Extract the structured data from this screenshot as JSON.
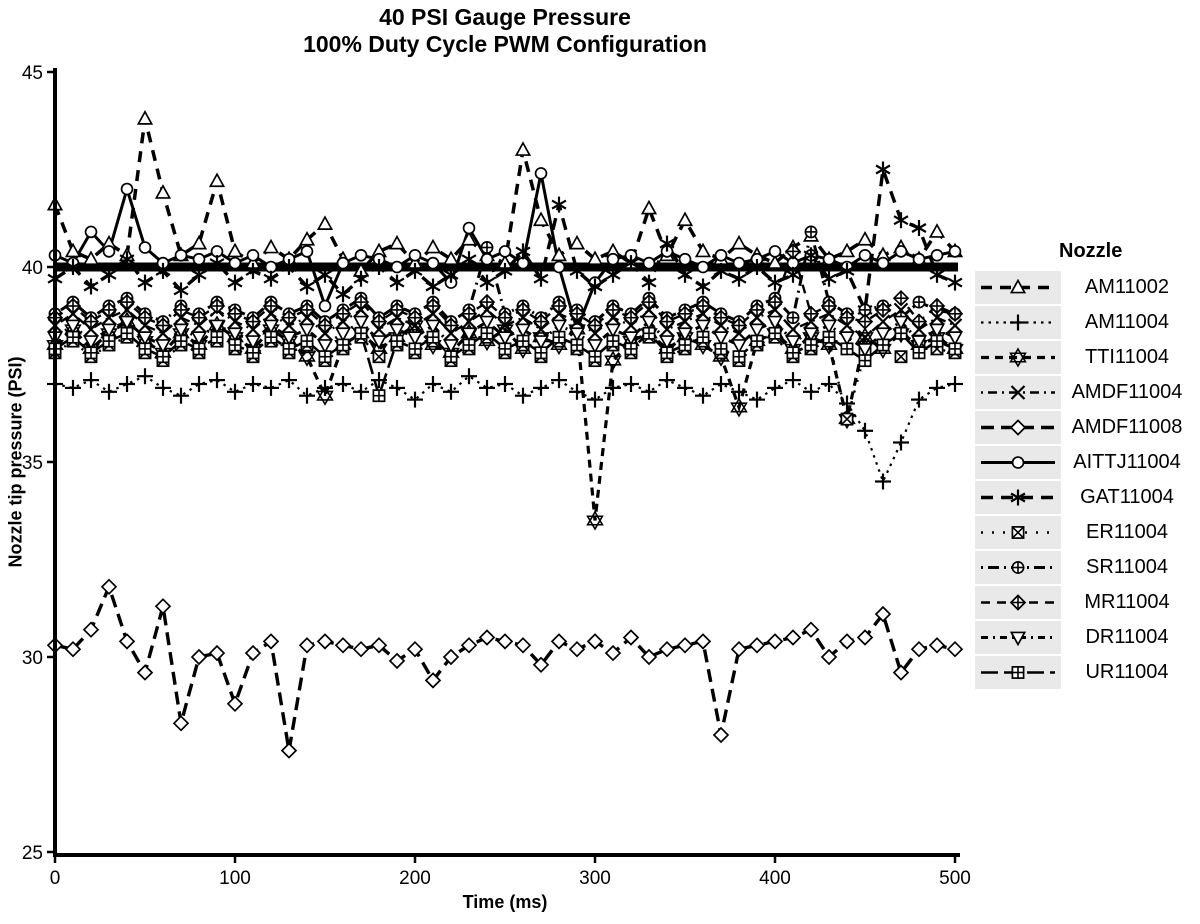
{
  "chart_data": {
    "type": "line",
    "title_line1": "40 PSI Gauge Pressure",
    "title_line2": "100% Duty Cycle PWM Configuration",
    "xlabel": "Time (ms)",
    "ylabel": "Nozzle tip pressure (PSI)",
    "legend_title": "Nozzle",
    "xlim": [
      0,
      500
    ],
    "ylim": [
      25,
      45
    ],
    "xticks": [
      0,
      100,
      200,
      300,
      400,
      500
    ],
    "yticks": [
      25,
      30,
      35,
      40,
      45
    ],
    "grid": "off",
    "legend_position": "right",
    "reference_line": {
      "y": 40,
      "stroke_width": 9,
      "color": "#000000"
    },
    "colors": {
      "foreground": "#000000",
      "background": "#ffffff",
      "legend_key_bg": "#e9e9e9"
    },
    "x": [
      0,
      10,
      20,
      30,
      40,
      50,
      60,
      70,
      80,
      90,
      100,
      110,
      120,
      130,
      140,
      150,
      160,
      170,
      180,
      190,
      200,
      210,
      220,
      230,
      240,
      250,
      260,
      270,
      280,
      290,
      300,
      310,
      320,
      330,
      340,
      350,
      360,
      370,
      380,
      390,
      400,
      410,
      420,
      430,
      440,
      450,
      460,
      470,
      480,
      490,
      500
    ],
    "series": [
      {
        "name": "AM11002",
        "marker": "triangle-up",
        "dash": "11,8",
        "width": 3.5,
        "values": [
          41.6,
          40.4,
          40.2,
          40.6,
          40.3,
          43.8,
          41.9,
          40.3,
          40.6,
          42.2,
          40.4,
          40.1,
          40.5,
          40.2,
          40.7,
          41.1,
          40.2,
          39.9,
          40.4,
          40.6,
          40.1,
          40.5,
          40.2,
          40.7,
          40.3,
          40.1,
          43.0,
          41.2,
          40.3,
          40.6,
          40.2,
          40.4,
          40.1,
          41.5,
          40.3,
          41.2,
          40.4,
          40.2,
          40.6,
          40.3,
          40.1,
          40.5,
          40.8,
          40.2,
          40.4,
          40.7,
          40.3,
          40.5,
          40.2,
          40.9,
          40.4
        ]
      },
      {
        "name": "AM11004",
        "marker": "plus",
        "dash": "2.5,5",
        "width": 2.2,
        "values": [
          37.0,
          36.9,
          37.1,
          36.8,
          37.0,
          37.2,
          36.9,
          36.7,
          37.0,
          37.1,
          36.8,
          37.0,
          36.9,
          37.1,
          36.7,
          36.9,
          37.0,
          36.8,
          37.1,
          36.9,
          36.6,
          37.0,
          36.8,
          37.2,
          36.9,
          37.0,
          36.7,
          36.9,
          37.1,
          36.8,
          36.6,
          36.9,
          37.0,
          36.8,
          37.1,
          36.9,
          36.7,
          37.0,
          36.8,
          36.6,
          36.9,
          37.1,
          36.8,
          37.0,
          36.5,
          35.8,
          34.5,
          35.5,
          36.6,
          36.9,
          37.0
        ]
      },
      {
        "name": "TTI11004",
        "marker": "star6",
        "dash": "8,6",
        "width": 3.2,
        "values": [
          38.0,
          38.4,
          37.9,
          38.3,
          38.6,
          38.1,
          37.8,
          38.3,
          38.0,
          38.5,
          38.2,
          37.9,
          38.4,
          38.1,
          37.7,
          36.7,
          38.0,
          38.3,
          37.9,
          38.2,
          38.5,
          38.0,
          37.8,
          38.3,
          38.1,
          38.4,
          37.9,
          38.2,
          38.0,
          38.4,
          33.5,
          37.6,
          38.1,
          38.3,
          37.9,
          38.2,
          38.0,
          37.7,
          36.4,
          38.1,
          38.3,
          37.9,
          38.2,
          38.0,
          36.1,
          38.2,
          37.9,
          38.3,
          38.0,
          38.2,
          37.9
        ]
      },
      {
        "name": "AMDF11004",
        "marker": "x",
        "dash": "2,5,9,5",
        "width": 2.4,
        "values": [
          38.5,
          38.8,
          38.4,
          38.7,
          38.9,
          38.5,
          38.3,
          38.7,
          38.5,
          38.9,
          38.6,
          38.4,
          38.8,
          38.5,
          38.7,
          38.3,
          38.6,
          38.9,
          38.4,
          38.7,
          38.5,
          38.8,
          38.3,
          38.6,
          38.9,
          38.5,
          38.7,
          38.4,
          38.8,
          38.6,
          38.3,
          38.7,
          38.5,
          38.9,
          38.4,
          38.6,
          38.8,
          38.5,
          38.3,
          38.7,
          38.9,
          38.4,
          38.6,
          38.8,
          38.5,
          38.2,
          38.6,
          38.9,
          38.4,
          38.7,
          38.5
        ]
      },
      {
        "name": "AMDF11008",
        "marker": "diamond",
        "dash": "13,7",
        "width": 3.4,
        "values": [
          30.3,
          30.2,
          30.7,
          31.8,
          30.4,
          29.6,
          31.3,
          28.3,
          30.0,
          30.1,
          28.8,
          30.1,
          30.4,
          27.6,
          30.3,
          30.4,
          30.3,
          30.2,
          30.3,
          29.9,
          30.2,
          29.4,
          30.0,
          30.3,
          30.5,
          30.4,
          30.3,
          29.8,
          30.4,
          30.2,
          30.4,
          30.1,
          30.5,
          30.0,
          30.2,
          30.3,
          30.4,
          28.0,
          30.2,
          30.3,
          30.4,
          30.5,
          30.7,
          30.0,
          30.4,
          30.5,
          31.1,
          29.6,
          30.2,
          30.3,
          30.2
        ]
      },
      {
        "name": "AITTJ11004",
        "marker": "circle",
        "dash": "",
        "width": 3.0,
        "values": [
          40.3,
          40.1,
          40.9,
          40.4,
          42.0,
          40.5,
          40.1,
          40.3,
          40.2,
          40.4,
          40.1,
          40.3,
          40.0,
          40.2,
          40.4,
          39.0,
          40.1,
          40.3,
          40.2,
          40.0,
          40.3,
          40.1,
          39.6,
          41.0,
          40.2,
          40.4,
          40.1,
          42.4,
          40.0,
          38.4,
          39.6,
          40.2,
          40.3,
          40.1,
          40.4,
          40.2,
          40.0,
          40.3,
          40.1,
          40.2,
          40.4,
          40.1,
          40.3,
          40.2,
          40.0,
          40.3,
          40.1,
          40.4,
          40.2,
          40.3,
          40.4
        ]
      },
      {
        "name": "GAT11004",
        "marker": "asterisk",
        "dash": "12,8",
        "width": 3.4,
        "values": [
          39.7,
          40.0,
          39.5,
          39.8,
          40.2,
          39.6,
          39.9,
          39.4,
          39.8,
          40.1,
          39.6,
          39.9,
          39.7,
          40.0,
          39.5,
          39.8,
          39.3,
          39.7,
          40.0,
          39.6,
          39.9,
          39.5,
          39.8,
          40.2,
          39.6,
          39.9,
          40.4,
          39.7,
          41.6,
          39.9,
          39.5,
          39.8,
          40.1,
          39.6,
          40.6,
          39.8,
          39.5,
          39.9,
          39.7,
          40.0,
          39.6,
          39.8,
          40.3,
          39.7,
          39.9,
          38.9,
          42.5,
          41.2,
          41.0,
          39.8,
          39.6
        ]
      },
      {
        "name": "ER11004",
        "marker": "square-x",
        "dash": "2,9",
        "width": 2.4,
        "values": [
          37.8,
          38.1,
          37.7,
          38.0,
          38.2,
          37.8,
          37.6,
          38.0,
          37.8,
          38.1,
          37.9,
          37.7,
          38.1,
          37.8,
          38.0,
          37.6,
          37.9,
          38.2,
          37.7,
          38.0,
          37.8,
          38.1,
          37.6,
          37.9,
          38.2,
          37.8,
          38.0,
          37.7,
          38.1,
          37.9,
          37.6,
          38.0,
          37.8,
          38.2,
          37.7,
          37.9,
          38.1,
          37.8,
          37.6,
          38.0,
          38.2,
          37.7,
          37.9,
          38.1,
          36.1,
          37.8,
          38.0,
          37.7,
          38.1,
          37.9,
          37.8
        ]
      },
      {
        "name": "SR11004",
        "marker": "circle-plus",
        "dash": "2,5,11,5",
        "width": 3.0,
        "values": [
          38.8,
          39.1,
          38.7,
          39.0,
          39.2,
          38.8,
          38.6,
          39.0,
          38.8,
          39.1,
          38.9,
          38.7,
          39.1,
          38.8,
          39.0,
          38.6,
          38.9,
          39.2,
          38.7,
          39.0,
          38.8,
          39.1,
          38.6,
          38.9,
          40.5,
          38.8,
          39.0,
          38.7,
          39.1,
          38.9,
          38.6,
          39.0,
          38.8,
          39.2,
          38.7,
          38.9,
          39.1,
          38.8,
          38.6,
          39.0,
          39.2,
          38.7,
          40.9,
          39.1,
          38.8,
          38.9,
          39.0,
          38.7,
          39.1,
          38.9,
          38.8
        ]
      },
      {
        "name": "MR11004",
        "marker": "diamond-plus",
        "dash": "9,7",
        "width": 2.4,
        "values": [
          38.7,
          39.0,
          38.6,
          38.9,
          39.1,
          38.7,
          38.5,
          38.9,
          38.7,
          39.0,
          38.8,
          38.6,
          39.0,
          38.7,
          38.9,
          38.5,
          38.8,
          39.1,
          38.6,
          38.9,
          38.7,
          39.0,
          38.5,
          38.8,
          39.1,
          38.7,
          38.9,
          38.6,
          39.0,
          38.8,
          38.5,
          38.9,
          38.7,
          39.1,
          38.6,
          38.8,
          39.0,
          38.7,
          38.5,
          38.9,
          39.1,
          40.4,
          38.8,
          39.0,
          38.7,
          38.6,
          38.9,
          39.2,
          38.6,
          39.0,
          38.8
        ]
      },
      {
        "name": "DR11004",
        "marker": "triangle-down",
        "dash": "7,5,2,5",
        "width": 3.0,
        "values": [
          38.2,
          38.5,
          38.1,
          38.4,
          38.6,
          38.2,
          38.0,
          38.4,
          38.2,
          38.5,
          38.3,
          38.1,
          38.5,
          38.2,
          38.4,
          38.0,
          38.3,
          38.6,
          38.1,
          38.4,
          38.2,
          38.5,
          38.0,
          38.3,
          38.6,
          38.2,
          38.4,
          38.1,
          38.5,
          38.3,
          38.0,
          38.4,
          38.2,
          38.6,
          38.1,
          38.3,
          38.5,
          38.2,
          38.0,
          38.4,
          38.6,
          38.1,
          38.3,
          38.5,
          38.2,
          37.9,
          38.3,
          38.6,
          38.1,
          38.4,
          38.2
        ]
      },
      {
        "name": "UR11004",
        "marker": "square-plus",
        "dash": "17,6",
        "width": 2.6,
        "values": [
          37.9,
          38.2,
          37.8,
          38.1,
          38.3,
          37.9,
          37.7,
          38.1,
          37.9,
          38.2,
          38.0,
          37.8,
          38.2,
          37.9,
          38.1,
          37.7,
          38.0,
          38.3,
          36.7,
          38.1,
          37.9,
          38.2,
          37.7,
          38.0,
          38.3,
          37.9,
          38.1,
          37.8,
          38.2,
          38.0,
          37.7,
          38.1,
          37.9,
          38.3,
          37.8,
          38.0,
          38.2,
          37.9,
          37.7,
          38.1,
          38.3,
          37.8,
          38.0,
          38.2,
          37.9,
          37.6,
          38.0,
          38.3,
          37.8,
          38.1,
          37.9
        ]
      }
    ]
  }
}
